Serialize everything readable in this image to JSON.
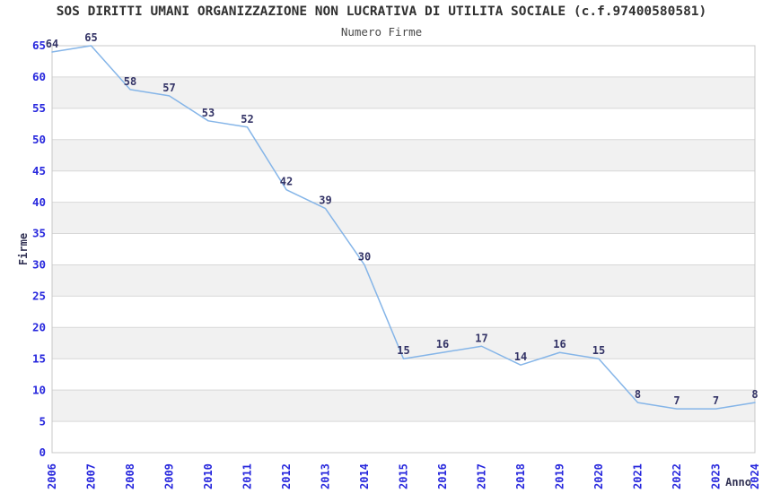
{
  "chart_data": {
    "type": "line",
    "title": "SOS DIRITTI UMANI ORGANIZZAZIONE NON LUCRATIVA DI UTILITA SOCIALE (c.f.97400580581)",
    "subtitle": "Numero Firme",
    "xlabel": "Anno",
    "ylabel": "Firme",
    "x": [
      2006,
      2007,
      2008,
      2009,
      2010,
      2011,
      2012,
      2013,
      2014,
      2015,
      2016,
      2017,
      2018,
      2019,
      2020,
      2021,
      2022,
      2023,
      2024
    ],
    "values": [
      64,
      65,
      58,
      57,
      53,
      52,
      42,
      39,
      30,
      15,
      16,
      17,
      14,
      16,
      15,
      8,
      7,
      7,
      8
    ],
    "ylim": [
      0,
      65
    ],
    "ytick_step": 5,
    "grid": true,
    "legend": "none",
    "point_labels_visible": true,
    "colors": {
      "line": "#85b5e8",
      "tick_labels": "#2727dd",
      "point_labels": "#333366",
      "axis_titles": "#333355",
      "title": "#303030",
      "subtitle": "#4a4a4a",
      "band": "#f1f1f1",
      "gridline": "#d8d8d8",
      "plot_border": "#c8c8c8",
      "background": "#ffffff"
    }
  }
}
